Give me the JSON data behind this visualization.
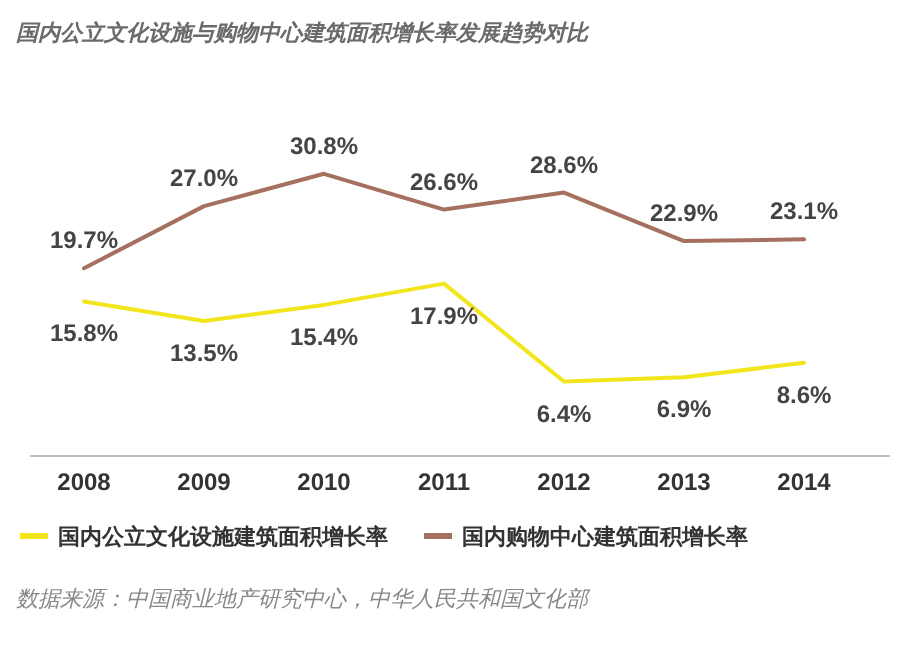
{
  "chart_data": {
    "type": "line",
    "title": "国内公立文化设施与购物中心建筑面积增长率发展趋势对比",
    "categories": [
      "2008",
      "2009",
      "2010",
      "2011",
      "2012",
      "2013",
      "2014"
    ],
    "series": [
      {
        "name": "国内公立文化设施建筑面积增长率",
        "color": "#f2e51c",
        "values": [
          15.8,
          13.5,
          15.4,
          17.9,
          6.4,
          6.9,
          8.6
        ],
        "value_labels": [
          "15.8%",
          "13.5%",
          "15.4%",
          "17.9%",
          "6.4%",
          "6.9%",
          "8.6%"
        ]
      },
      {
        "name": "国内购物中心建筑面积增长率",
        "color": "#a5705f",
        "values": [
          19.7,
          27.0,
          30.8,
          26.6,
          28.6,
          22.9,
          23.1
        ],
        "value_labels": [
          "19.7%",
          "27.0%",
          "30.8%",
          "26.6%",
          "28.6%",
          "22.9%",
          "23.1%"
        ]
      }
    ],
    "legend": "bottom",
    "marker": "none",
    "line_style": "solid",
    "annotations": [
      "数据来源：中国商业地产研究中心，中华人民共和国文化部"
    ]
  }
}
